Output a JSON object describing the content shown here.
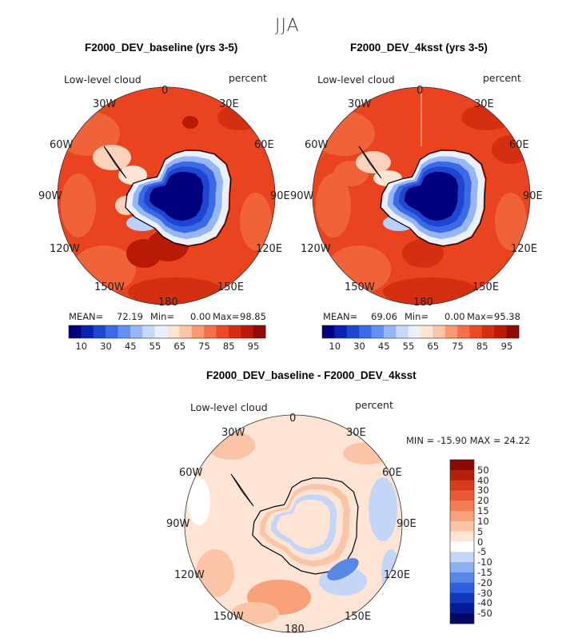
{
  "figure": {
    "season": "JJA",
    "background": "#ffffff"
  },
  "chart_data": [
    {
      "type": "heatmap",
      "projection": "south-polar-stereographic",
      "title": "F2000_DEV_baseline (yrs 3-5)",
      "variable": "Low-level cloud",
      "units": "percent",
      "lon_labels": [
        "0",
        "30E",
        "60E",
        "90E",
        "120E",
        "150E",
        "180",
        "150W",
        "120W",
        "90W",
        "60W",
        "30W"
      ],
      "stats": {
        "mean_label": "MEAN=",
        "mean": "72.19",
        "min_label": "Min=",
        "min": "0.00",
        "max_label": "Max=",
        "max": "98.85"
      },
      "colorbar": {
        "ticks": [
          "10",
          "30",
          "45",
          "55",
          "65",
          "75",
          "85",
          "95"
        ],
        "colors": [
          "#00007f",
          "#0a22b0",
          "#1e46d0",
          "#3c6ae6",
          "#6490f2",
          "#96b6f8",
          "#c6d8fc",
          "#eaf1fe",
          "#fde4d4",
          "#fcc4a8",
          "#f99a74",
          "#f5714a",
          "#ec4a24",
          "#d72d10",
          "#b81a06",
          "#8f0a02"
        ]
      }
    },
    {
      "type": "heatmap",
      "projection": "south-polar-stereographic",
      "title": "F2000_DEV_4ksst (yrs 3-5)",
      "variable": "Low-level cloud",
      "units": "percent",
      "lon_labels": [
        "0",
        "30E",
        "60E",
        "90E",
        "120E",
        "150E",
        "180",
        "150W",
        "120W",
        "90W",
        "60W",
        "30W"
      ],
      "stats": {
        "mean_label": "MEAN=",
        "mean": "69.06",
        "min_label": "Min=",
        "min": "0.00",
        "max_label": "Max=",
        "max": "95.38"
      },
      "colorbar": {
        "ticks": [
          "10",
          "30",
          "45",
          "55",
          "65",
          "75",
          "85",
          "95"
        ],
        "colors": [
          "#00007f",
          "#0a22b0",
          "#1e46d0",
          "#3c6ae6",
          "#6490f2",
          "#96b6f8",
          "#c6d8fc",
          "#eaf1fe",
          "#fde4d4",
          "#fcc4a8",
          "#f99a74",
          "#f5714a",
          "#ec4a24",
          "#d72d10",
          "#b81a06",
          "#8f0a02"
        ]
      }
    },
    {
      "type": "heatmap",
      "projection": "south-polar-stereographic",
      "title": "F2000_DEV_baseline - F2000_DEV_4ksst",
      "variable": "Low-level cloud",
      "units": "percent",
      "lon_labels": [
        "0",
        "30E",
        "60E",
        "90E",
        "120E",
        "150E",
        "180",
        "150W",
        "120W",
        "90W",
        "60W",
        "30W"
      ],
      "stats": {
        "text": "MIN = -15.90 MAX =  24.22",
        "min": -15.9,
        "max": 24.22
      },
      "colorbar": {
        "ticks": [
          "50",
          "40",
          "30",
          "20",
          "15",
          "10",
          "5",
          "0",
          "-5",
          "-10",
          "-15",
          "-20",
          "-30",
          "-40",
          "-50"
        ],
        "colors": [
          "#8a0a03",
          "#b3200c",
          "#d83a1a",
          "#ec5a34",
          "#f57c52",
          "#f9a07a",
          "#fbc4a6",
          "#fde4d4",
          "#ffffff",
          "#c4d6f8",
          "#8cb0f0",
          "#5888e6",
          "#2e5fdc",
          "#1238c0",
          "#061c96",
          "#000a66"
        ]
      }
    }
  ]
}
